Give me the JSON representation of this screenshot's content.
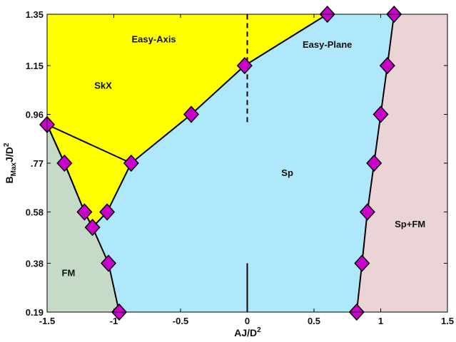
{
  "chart_data": {
    "type": "scatter",
    "title": "",
    "xlabel": "AJ/D",
    "xlabel_sup": "2",
    "ylabel": "B",
    "ylabel_sub": "Max",
    "ylabel_rest": "J/D",
    "ylabel_sup": "2",
    "xlim": [
      -1.5,
      1.5
    ],
    "ylim": [
      0.19,
      1.35
    ],
    "x_ticks": [
      {
        "value": -1.5,
        "label": "-1.5"
      },
      {
        "value": -1,
        "label": "-1"
      },
      {
        "value": -0.5,
        "label": "-0.5"
      },
      {
        "value": 0,
        "label": "0"
      },
      {
        "value": 0.5,
        "label": "0.5"
      },
      {
        "value": 1,
        "label": "1"
      },
      {
        "value": 1.5,
        "label": "1.5"
      }
    ],
    "y_ticks": [
      {
        "value": 0.19,
        "label": "0.19"
      },
      {
        "value": 0.38,
        "label": "0.38"
      },
      {
        "value": 0.58,
        "label": "0.58"
      },
      {
        "value": 0.77,
        "label": ".77"
      },
      {
        "value": 0.96,
        "label": "0.96"
      },
      {
        "value": 1.15,
        "label": "1.15"
      },
      {
        "value": 1.35,
        "label": "1.35"
      }
    ],
    "grid": false,
    "colors": {
      "skx": "#ffff00",
      "sp": "#aee8fa",
      "fm": "#c5dbc7",
      "spfm": "#ead4d5",
      "marker": "#cc00cc",
      "line": "#000000"
    },
    "boundaries": [
      {
        "name": "skx-upper",
        "x": [
          -1.5,
          -0.87,
          -0.42,
          -0.02,
          0.6
        ],
        "y": [
          0.92,
          0.77,
          0.96,
          1.15,
          1.35
        ]
      },
      {
        "name": "skx-lower",
        "x": [
          -1.5,
          -1.37,
          -1.22,
          -1.16,
          -1.05,
          -0.87
        ],
        "y": [
          0.92,
          0.77,
          0.58,
          0.52,
          0.58,
          0.77
        ]
      },
      {
        "name": "fm-boundary",
        "x": [
          -1.5,
          -1.37,
          -1.22,
          -1.16,
          -1.04,
          -0.96
        ],
        "y": [
          0.92,
          0.77,
          0.58,
          0.52,
          0.38,
          0.19
        ]
      },
      {
        "name": "spfm-boundary",
        "x": [
          0.82,
          0.86,
          0.9,
          0.95,
          1.0,
          1.05,
          1.1
        ],
        "y": [
          0.19,
          0.38,
          0.58,
          0.77,
          0.96,
          1.15,
          1.35
        ]
      }
    ],
    "points": [
      {
        "x": -1.5,
        "y": 0.92
      },
      {
        "x": -1.37,
        "y": 0.77
      },
      {
        "x": -1.22,
        "y": 0.58
      },
      {
        "x": -1.16,
        "y": 0.52
      },
      {
        "x": -1.05,
        "y": 0.58
      },
      {
        "x": -1.04,
        "y": 0.38
      },
      {
        "x": -0.96,
        "y": 0.19
      },
      {
        "x": -0.87,
        "y": 0.77
      },
      {
        "x": -0.42,
        "y": 0.96
      },
      {
        "x": -0.02,
        "y": 1.15
      },
      {
        "x": 0.6,
        "y": 1.35
      },
      {
        "x": 1.1,
        "y": 1.35
      },
      {
        "x": 1.05,
        "y": 1.15
      },
      {
        "x": 1.0,
        "y": 0.96
      },
      {
        "x": 0.95,
        "y": 0.77
      },
      {
        "x": 0.9,
        "y": 0.58
      },
      {
        "x": 0.86,
        "y": 0.38
      },
      {
        "x": 0.82,
        "y": 0.19
      }
    ],
    "divider_dashed": {
      "x": 0,
      "y": [
        0.93,
        1.35
      ]
    },
    "divider_solid": {
      "x": 0,
      "y": [
        0.19,
        0.38
      ]
    },
    "annotations": [
      {
        "text": "Easy-Axis",
        "x": -0.7,
        "y": 1.24,
        "name": "label-easy-axis"
      },
      {
        "text": "SkX",
        "x": -1.08,
        "y": 1.06,
        "name": "label-skx"
      },
      {
        "text": "Easy-Plane",
        "x": 0.6,
        "y": 1.22,
        "name": "label-easy-plane"
      },
      {
        "text": "Sp",
        "x": 0.3,
        "y": 0.72,
        "name": "label-sp"
      },
      {
        "text": "Sp+FM",
        "x": 1.22,
        "y": 0.52,
        "name": "label-sp-fm"
      },
      {
        "text": "FM",
        "x": -1.34,
        "y": 0.33,
        "name": "label-fm"
      }
    ]
  }
}
